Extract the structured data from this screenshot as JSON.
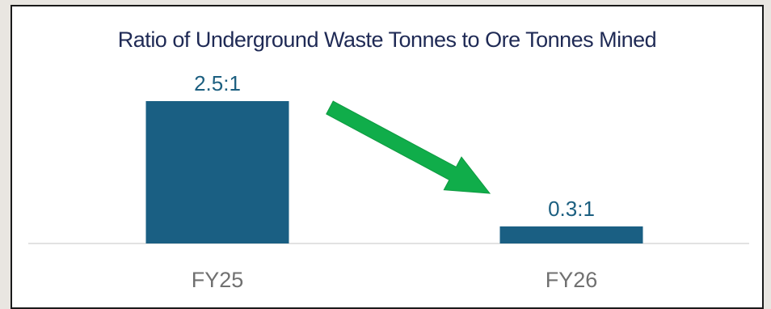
{
  "chart_data": {
    "type": "bar",
    "title": "Ratio of Underground Waste Tonnes to Ore Tonnes Mined",
    "categories": [
      "FY25",
      "FY26"
    ],
    "values": [
      2.5,
      0.3
    ],
    "data_labels": [
      "2.5:1",
      "0.3:1"
    ],
    "xlabel": "",
    "ylabel": "",
    "ylim": [
      0,
      2.5
    ],
    "grid": false,
    "legend": "none",
    "bar_color": "#1a5f83",
    "label_color": "#1c5f80",
    "annotation": {
      "type": "arrow",
      "direction": "down-right",
      "color": "#10ad4a"
    }
  }
}
